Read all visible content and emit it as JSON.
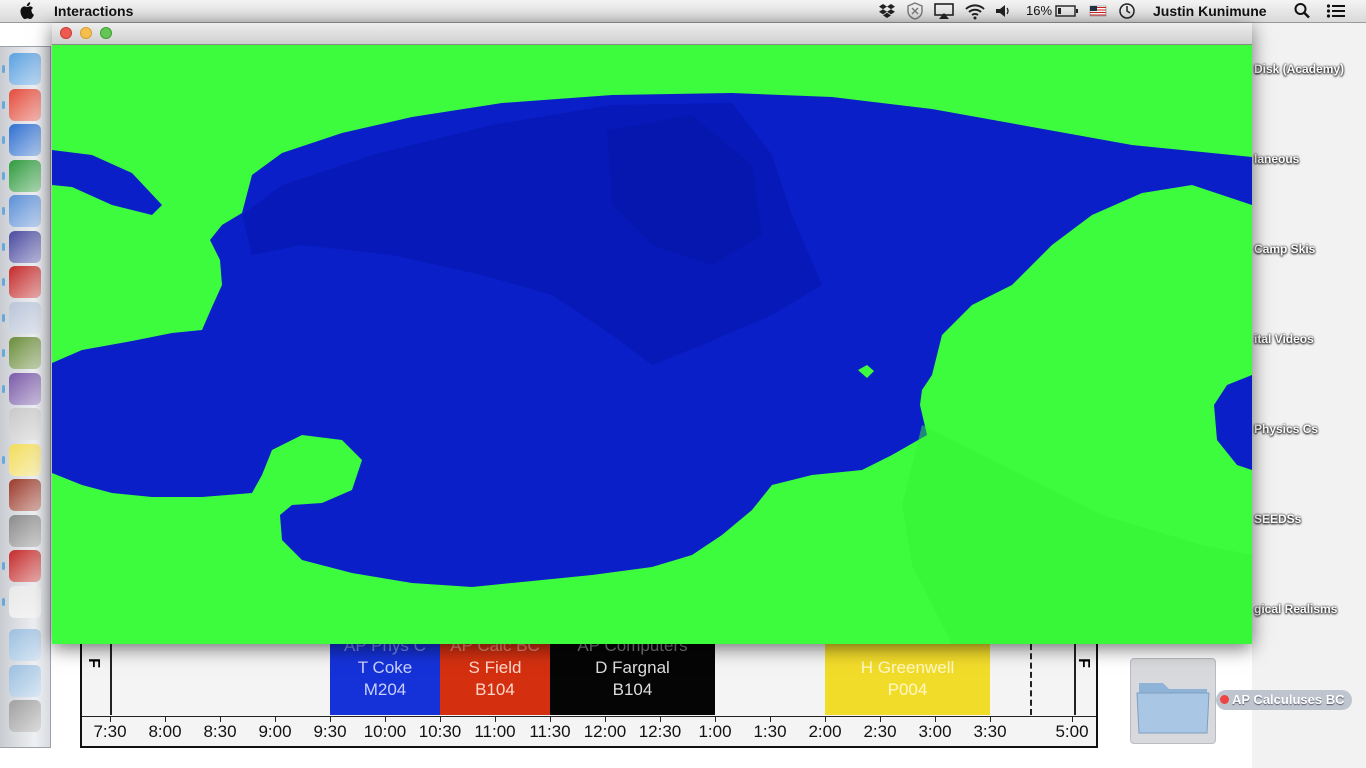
{
  "menubar": {
    "app_name": "Interactions",
    "battery": "16%",
    "user": "Justin Kunimune"
  },
  "desktop": {
    "items": [
      {
        "label": "Disk (Academy)"
      },
      {
        "label": "laneous"
      },
      {
        "label": "Camp Skis"
      },
      {
        "label": "ital Videos"
      },
      {
        "label": "Physics Cs"
      },
      {
        "label": "SEEDSs"
      },
      {
        "label": "gical Realisms"
      }
    ],
    "folder_label": "AP Calculuses BC"
  },
  "dock": {
    "apps": [
      "finder-icon",
      "chrome-icon",
      "word-icon",
      "excel-icon",
      "keynote-icon",
      "imovie-icon",
      "jgrasp-icon",
      "grapher-icon",
      "minecraft-icon",
      "github-icon",
      "calculator-icon",
      "stickies-icon",
      "dictionary-icon",
      "system-preferences-icon",
      "jgrasp-icon-2",
      "java-icon",
      "applications-folder-icon",
      "downloads-folder-icon",
      "trash-icon"
    ]
  },
  "window": {
    "title": "",
    "colors": {
      "land": "#3dfc3d",
      "water": "#0a1fc8",
      "water_shade": "#0717b4"
    }
  },
  "schedule": {
    "blocks": [
      {
        "header": "AP Phys C",
        "teacher": "T Coke",
        "room": "M204",
        "color": "#1532d8",
        "text_color": "#c9d0ff"
      },
      {
        "header": "AP Calc BC",
        "teacher": "S Field",
        "room": "B104",
        "color": "#d43010",
        "text_color": "#ffd8cc"
      },
      {
        "header": "AP Computers",
        "teacher": "D Fargnal",
        "room": "B104",
        "color": "#050505",
        "text_color": "#dddddd"
      },
      {
        "header": "",
        "teacher": "H Greenwell",
        "room": "P004",
        "color": "#f2dc2a",
        "text_color": "#fff8c8"
      }
    ],
    "times": [
      "7:30",
      "8:00",
      "8:30",
      "9:00",
      "9:30",
      "10:00",
      "10:30",
      "11:00",
      "11:30",
      "12:00",
      "12:30",
      "1:00",
      "1:30",
      "2:00",
      "2:30",
      "3:00",
      "3:30",
      "5:00"
    ],
    "day_letter_left": "F",
    "day_letter_right": "F"
  }
}
